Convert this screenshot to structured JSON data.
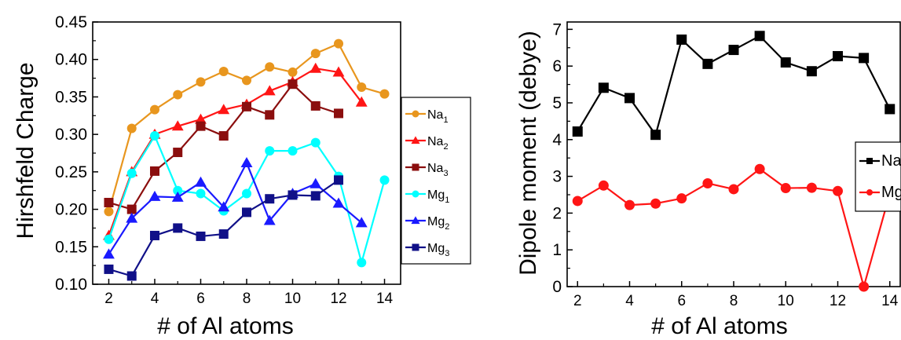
{
  "chart_data": [
    {
      "type": "line",
      "xlabel": "# of Al atoms",
      "ylabel": "Hirshfeld Charge",
      "xlim": [
        1.3,
        14.7
      ],
      "ylim": [
        0.1,
        0.45
      ],
      "xticks": [
        2,
        4,
        6,
        8,
        10,
        12,
        14
      ],
      "yticks": [
        0.1,
        0.15,
        0.2,
        0.25,
        0.3,
        0.35,
        0.4,
        0.45
      ],
      "ytick_labels": [
        "0.10",
        "0.15",
        "0.20",
        "0.25",
        "0.30",
        "0.35",
        "0.40",
        "0.45"
      ],
      "legend_position": "right",
      "x": [
        2,
        3,
        4,
        5,
        6,
        7,
        8,
        9,
        10,
        11,
        12,
        13,
        14
      ],
      "series": [
        {
          "name": "Na",
          "sub": "1",
          "color": "#E8961E",
          "marker": "circle",
          "values": [
            0.197,
            0.308,
            0.333,
            0.353,
            0.37,
            0.384,
            0.372,
            0.39,
            0.383,
            0.408,
            0.421,
            0.363,
            0.354
          ]
        },
        {
          "name": "Na",
          "sub": "2",
          "color": "#FF1515",
          "marker": "triangle",
          "values": [
            0.165,
            0.25,
            0.3,
            0.311,
            0.32,
            0.333,
            0.34,
            0.358,
            0.37,
            0.388,
            0.383,
            0.343,
            null
          ]
        },
        {
          "name": "Na",
          "sub": "3",
          "color": "#8B0E0E",
          "marker": "square",
          "values": [
            0.209,
            0.2,
            0.251,
            0.276,
            0.311,
            0.298,
            0.337,
            0.326,
            0.367,
            0.338,
            0.328,
            null,
            null
          ]
        },
        {
          "name": "Mg",
          "sub": "1",
          "color": "#00FFFF",
          "marker": "circle",
          "values": [
            0.16,
            0.248,
            0.298,
            0.225,
            0.221,
            0.198,
            0.221,
            0.278,
            0.278,
            0.289,
            0.244,
            0.129,
            0.239
          ]
        },
        {
          "name": "Mg",
          "sub": "2",
          "color": "#1A1AFF",
          "marker": "triangle",
          "values": [
            0.14,
            0.188,
            0.217,
            0.216,
            0.236,
            0.203,
            0.262,
            0.185,
            0.221,
            0.234,
            0.208,
            0.182,
            null
          ]
        },
        {
          "name": "Mg",
          "sub": "3",
          "color": "#101088",
          "marker": "square",
          "values": [
            0.12,
            0.111,
            0.165,
            0.175,
            0.164,
            0.167,
            0.196,
            0.214,
            0.219,
            0.218,
            0.239,
            null,
            null
          ]
        }
      ]
    },
    {
      "type": "line",
      "xlabel": "# of Al atoms",
      "ylabel": "Dipole moment (debye)",
      "xlim": [
        1.6,
        14.4
      ],
      "ylim": [
        0,
        7.2
      ],
      "xticks": [
        2,
        4,
        6,
        8,
        10,
        12,
        14
      ],
      "yticks": [
        0,
        1,
        2,
        3,
        4,
        5,
        6,
        7
      ],
      "ytick_labels": [
        "0",
        "1",
        "2",
        "3",
        "4",
        "5",
        "6",
        "7"
      ],
      "legend_position": "right",
      "x": [
        2,
        3,
        4,
        5,
        6,
        7,
        8,
        9,
        10,
        11,
        12,
        13,
        14
      ],
      "series": [
        {
          "name": "Na",
          "color": "#000000",
          "marker": "square",
          "values": [
            4.22,
            5.41,
            5.13,
            4.13,
            6.72,
            6.06,
            6.44,
            6.82,
            6.1,
            5.86,
            6.27,
            6.22,
            4.83
          ]
        },
        {
          "name": "Mg",
          "color": "#FF1515",
          "marker": "circle",
          "values": [
            2.33,
            2.75,
            2.22,
            2.26,
            2.4,
            2.81,
            2.65,
            3.2,
            2.68,
            2.69,
            2.6,
            0.0,
            2.53
          ]
        }
      ]
    }
  ]
}
